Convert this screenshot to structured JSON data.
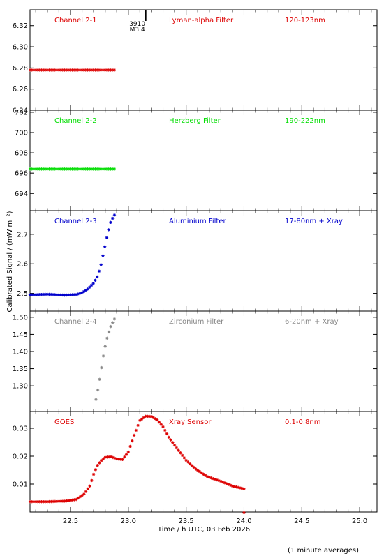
{
  "chart_data": {
    "type": "scatter",
    "x_axis": {
      "label": "Time / h UTC, 03 Feb 2026",
      "range": [
        22.15,
        25.15
      ],
      "ticks": [
        22.5,
        23.0,
        23.5,
        24.0,
        24.5,
        25.0
      ],
      "tick_labels": [
        "22.5",
        "23.0",
        "23.5",
        "24.0",
        "24.5",
        "25.0"
      ]
    },
    "y_axis_label": "Calibrated Signal / (mW m⁻²)",
    "footnote": "(1 minute averages)",
    "event_marker": {
      "x": 23.15,
      "label_top": "3910",
      "label_bottom": "M3.4"
    },
    "panels": [
      {
        "channel": "Channel 2-1",
        "filter": "Lyman-alpha Filter",
        "band": "120-123nm",
        "color": "#dd0000",
        "ylim": [
          6.24,
          6.335
        ],
        "yticks": [
          6.24,
          6.26,
          6.28,
          6.3,
          6.32
        ],
        "ytick_labels": [
          "6.24",
          "6.26",
          "6.28",
          "6.30",
          "6.32"
        ],
        "points": [
          [
            22.15,
            6.278
          ],
          [
            22.88,
            6.278
          ]
        ]
      },
      {
        "channel": "Channel 2-2",
        "filter": "Herzberg Filter",
        "band": "190-222nm",
        "color": "#00dd00",
        "ylim": [
          692.3,
          702.2
        ],
        "yticks": [
          694,
          696,
          698,
          700,
          702
        ],
        "ytick_labels": [
          "694",
          "696",
          "698",
          "700",
          "702"
        ],
        "points": [
          [
            22.15,
            696.4
          ],
          [
            22.88,
            696.4
          ]
        ]
      },
      {
        "channel": "Channel 2-3",
        "filter": "Aluminium Filter",
        "band": "17-80nm + Xray",
        "color": "#0000cc",
        "ylim": [
          2.44,
          2.78
        ],
        "yticks": [
          2.5,
          2.6,
          2.7
        ],
        "ytick_labels": [
          "2.5",
          "2.6",
          "2.7"
        ],
        "points": [
          [
            22.15,
            2.495
          ],
          [
            22.3,
            2.497
          ],
          [
            22.45,
            2.494
          ],
          [
            22.55,
            2.496
          ],
          [
            22.6,
            2.502
          ],
          [
            22.65,
            2.515
          ],
          [
            22.7,
            2.535
          ],
          [
            22.73,
            2.555
          ],
          [
            22.76,
            2.59
          ],
          [
            22.79,
            2.645
          ],
          [
            22.82,
            2.7
          ],
          [
            22.85,
            2.745
          ],
          [
            22.88,
            2.765
          ]
        ]
      },
      {
        "channel": "Channel 2-4",
        "filter": "Zirconium Filter",
        "band": "6-20nm + Xray",
        "color": "#888888",
        "ylim": [
          1.225,
          1.518
        ],
        "yticks": [
          1.3,
          1.35,
          1.4,
          1.45,
          1.5
        ],
        "ytick_labels": [
          "1.30",
          "1.35",
          "1.40",
          "1.45",
          "1.50"
        ],
        "points": [
          [
            22.72,
            1.26
          ],
          [
            22.74,
            1.295
          ],
          [
            22.76,
            1.335
          ],
          [
            22.78,
            1.38
          ],
          [
            22.8,
            1.415
          ],
          [
            22.82,
            1.445
          ],
          [
            22.85,
            1.475
          ],
          [
            22.88,
            1.495
          ]
        ]
      },
      {
        "channel": "GOES",
        "filter": "Xray Sensor",
        "band": "0.1-0.8nm",
        "color": "#dd0000",
        "ylim": [
          0.0,
          0.036
        ],
        "yticks": [
          0.01,
          0.02,
          0.03
        ],
        "ytick_labels": [
          "0.01",
          "0.02",
          "0.03"
        ],
        "points": [
          [
            22.15,
            0.0037
          ],
          [
            22.3,
            0.0037
          ],
          [
            22.45,
            0.0039
          ],
          [
            22.55,
            0.0045
          ],
          [
            22.62,
            0.0065
          ],
          [
            22.67,
            0.0095
          ],
          [
            22.7,
            0.0135
          ],
          [
            22.73,
            0.0165
          ],
          [
            22.76,
            0.0182
          ],
          [
            22.8,
            0.0196
          ],
          [
            22.85,
            0.0198
          ],
          [
            22.9,
            0.019
          ],
          [
            22.95,
            0.0188
          ],
          [
            23.0,
            0.0215
          ],
          [
            23.05,
            0.0275
          ],
          [
            23.1,
            0.0328
          ],
          [
            23.15,
            0.0343
          ],
          [
            23.2,
            0.0342
          ],
          [
            23.25,
            0.033
          ],
          [
            23.3,
            0.0305
          ],
          [
            23.35,
            0.0268
          ],
          [
            23.42,
            0.0228
          ],
          [
            23.5,
            0.0185
          ],
          [
            23.58,
            0.0155
          ],
          [
            23.68,
            0.0127
          ],
          [
            23.8,
            0.011
          ],
          [
            23.9,
            0.0093
          ],
          [
            24.0,
            0.0083
          ]
        ]
      }
    ]
  }
}
